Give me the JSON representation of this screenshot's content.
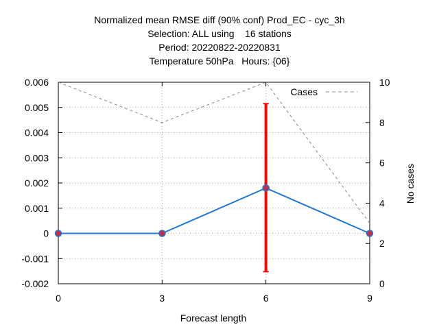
{
  "chart_data": {
    "type": "line",
    "title_lines": [
      "Normalized mean RMSE diff (90% conf) Prod_EC - cyc_3h",
      "Selection: ALL using    16 stations",
      "Period: 20220822-20220831",
      "Temperature 50hPa   Hours: {06}"
    ],
    "xlabel": "Forecast length",
    "ylabel": "",
    "y2label": "No cases",
    "xlim": [
      0,
      9
    ],
    "ylim": [
      -0.002,
      0.006
    ],
    "y2lim": [
      0,
      10
    ],
    "x_ticks": [
      0,
      3,
      6,
      9
    ],
    "y_ticks": [
      -0.002,
      -0.001,
      0,
      0.001,
      0.002,
      0.003,
      0.004,
      0.005,
      0.006
    ],
    "y_tick_labels": [
      "-0.002",
      "-0.001",
      "0",
      "0.001",
      "0.002",
      "0.003",
      "0.004",
      "0.005",
      "0.006"
    ],
    "y2_ticks": [
      0,
      2,
      4,
      6,
      8,
      10
    ],
    "grid": true,
    "legend_position": "top-right",
    "series": [
      {
        "x": [
          0,
          3,
          6,
          9
        ],
        "values": [
          0,
          0,
          0.0018,
          0
        ],
        "color": "#1f78d8",
        "marker_color": "#c0304a",
        "axis": "left"
      },
      {
        "name": "Cases",
        "x": [
          0,
          3,
          6,
          9
        ],
        "values": [
          10,
          8,
          10,
          3
        ],
        "color": "#888888",
        "style": "dashed",
        "axis": "right"
      }
    ],
    "error_bars": [
      {
        "x": 6,
        "low": -0.00152,
        "high": 0.00515,
        "color": "#ff0000"
      }
    ]
  }
}
